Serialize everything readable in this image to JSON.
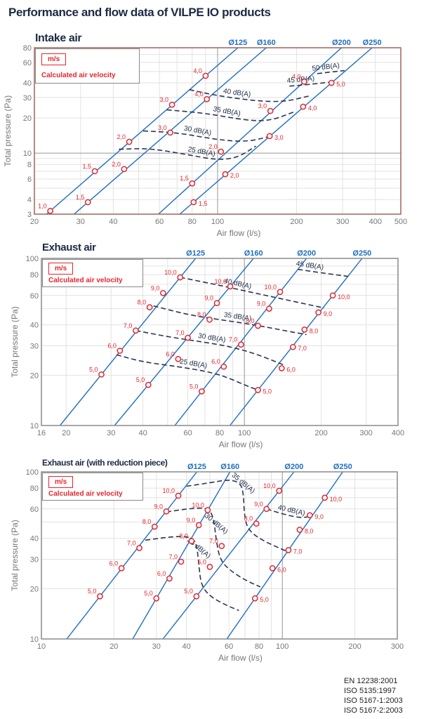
{
  "page_title": "Performance and flow data of  VILPE IO products",
  "standards": [
    "EN 12238:2001",
    "ISO 5135:1997",
    "ISO 5167-1:2003",
    "ISO 5167-2:2003"
  ],
  "legend": {
    "unit": "m/s",
    "description": "Calculated air velocity"
  },
  "colors": {
    "duct_line": "#1f6fc0",
    "marker": "#e3262e",
    "noise_curve": "#2b3550",
    "frame_intake": "#a0645a",
    "frame_exhaust": "#8a8a8a",
    "grid": "#dddddd"
  },
  "chart_data": [
    {
      "id": "intake",
      "type": "line",
      "title": "Intake air",
      "xlabel": "Air flow (l/s)",
      "ylabel": "Total pressure (Pa)",
      "xscale": "log",
      "yscale": "log",
      "xlim": [
        20,
        500
      ],
      "ylim": [
        3,
        80
      ],
      "xticks": [
        20,
        30,
        40,
        60,
        80,
        100,
        200,
        300,
        400,
        500
      ],
      "yticks": [
        3,
        4,
        6,
        8,
        10,
        20,
        30,
        40,
        60,
        80
      ],
      "grid": true,
      "series": [
        {
          "name": "Ø125",
          "points": [
            [
              23,
              3.2,
              "1,0"
            ],
            [
              34,
              7,
              "1,5"
            ],
            [
              46,
              12.5,
              "2,0"
            ],
            [
              67,
              26,
              "3,0"
            ],
            [
              90,
              46,
              "4,0"
            ]
          ]
        },
        {
          "name": "Ø160",
          "points": [
            [
              32,
              3.8,
              "1,5"
            ],
            [
              44,
              7.3,
              "2,0"
            ],
            [
              66,
              15,
              "3,0"
            ],
            [
              91,
              29,
              "4,0"
            ]
          ]
        },
        {
          "name": "Ø200",
          "points": [
            [
              80,
              5.5,
              "1,5"
            ],
            [
              103,
              10.3,
              "2,0"
            ],
            [
              159,
              23,
              "3,0"
            ],
            [
              214,
              41,
              "4,0"
            ]
          ]
        },
        {
          "name": "Ø250",
          "points": [
            [
              81,
              3.8,
              "1,5"
            ],
            [
              107,
              6.6,
              "2,0"
            ],
            [
              158,
              14,
              "3,0"
            ],
            [
              212,
              25,
              "4,0"
            ],
            [
              272,
              40,
              "5,0"
            ]
          ]
        }
      ],
      "noise_curves": [
        {
          "label": "25 dB(A)",
          "points": [
            [
              42,
              10.8
            ],
            [
              55,
              11
            ],
            [
              75,
              9.8
            ],
            [
              100,
              8.7
            ],
            [
              120,
              9.2
            ],
            [
              140,
              11.5
            ]
          ]
        },
        {
          "label": "30 dB(A)",
          "points": [
            [
              52,
              15.5
            ],
            [
              70,
              15
            ],
            [
              100,
              13
            ],
            [
              130,
              12.5
            ],
            [
              160,
              14
            ]
          ]
        },
        {
          "label": "35 dB(A)",
          "points": [
            [
              64,
              23.5
            ],
            [
              90,
              22
            ],
            [
              130,
              19
            ],
            [
              160,
              19
            ],
            [
              195,
              22.5
            ]
          ]
        },
        {
          "label": "40 dB(A)",
          "points": [
            [
              78,
              35
            ],
            [
              100,
              31
            ],
            [
              140,
              28
            ],
            [
              180,
              27.5
            ],
            [
              225,
              31
            ]
          ]
        },
        {
          "label": "45 dB(A)",
          "points": [
            [
              188,
              37.5
            ],
            [
              230,
              39
            ],
            [
              265,
              40.5
            ]
          ]
        },
        {
          "label": "50 dB(A)",
          "points": [
            [
              240,
              48
            ],
            [
              280,
              50
            ],
            [
              305,
              51
            ]
          ]
        }
      ]
    },
    {
      "id": "exhaust",
      "type": "line",
      "title": "Exhaust air",
      "xlabel": "Air flow (l/s)",
      "ylabel": "Total pressure (Pa)",
      "xscale": "log",
      "yscale": "log",
      "xlim": [
        16,
        400
      ],
      "ylim": [
        10,
        100
      ],
      "xticks": [
        16,
        20,
        30,
        40,
        60,
        80,
        100,
        200,
        300,
        400
      ],
      "yticks": [
        10,
        20,
        30,
        40,
        60,
        80,
        100
      ],
      "grid": true,
      "series": [
        {
          "name": "Ø125",
          "points": [
            [
              27.5,
              20.2,
              "5,0"
            ],
            [
              32.5,
              28,
              "6,0"
            ],
            [
              37.5,
              37,
              "7,0"
            ],
            [
              42.5,
              51,
              "8,0"
            ],
            [
              48,
              62,
              "9,0"
            ],
            [
              56,
              77,
              "10,0"
            ]
          ]
        },
        {
          "name": "Ø160",
          "points": [
            [
              42,
              17.5,
              "5,0"
            ],
            [
              55,
              25,
              "6,0"
            ],
            [
              60,
              33.5,
              "7,0"
            ],
            [
              73,
              43,
              "8,0"
            ],
            [
              78,
              54,
              "9,0"
            ],
            [
              88,
              68,
              "10,0"
            ]
          ]
        },
        {
          "name": "Ø200",
          "points": [
            [
              68,
              16,
              "5,0"
            ],
            [
              83,
              22.5,
              "6,0"
            ],
            [
              97,
              30.5,
              "7,0"
            ],
            [
              113,
              39.5,
              "8,0"
            ],
            [
              125,
              50,
              "9,0"
            ],
            [
              138,
              63,
              "10,0"
            ]
          ]
        },
        {
          "name": "Ø250",
          "points": [
            [
              113,
              16.3,
              "5,0"
            ],
            [
              140,
              22,
              "6,0"
            ],
            [
              155,
              29.5,
              "7,0"
            ],
            [
              172,
              37.5,
              "8,0"
            ],
            [
              195,
              47.5,
              "9,0"
            ],
            [
              222,
              60,
              "10,0"
            ]
          ]
        }
      ],
      "noise_curves": [
        {
          "label": "25 dB(A)",
          "points": [
            [
              31.5,
              26.5
            ],
            [
              40,
              24
            ],
            [
              55,
              22.5
            ],
            [
              72,
              21
            ],
            [
              85,
              19.5
            ],
            [
              100,
              17.5
            ],
            [
              113,
              16.3
            ]
          ]
        },
        {
          "label": "30 dB(A)",
          "points": [
            [
              37.5,
              37
            ],
            [
              50,
              34
            ],
            [
              65,
              32
            ],
            [
              85,
              30
            ],
            [
              110,
              27
            ],
            [
              143,
              23
            ]
          ]
        },
        {
          "label": "35 dB(A)",
          "points": [
            [
              44,
              52
            ],
            [
              60,
              46
            ],
            [
              80,
              43
            ],
            [
              110,
              40
            ],
            [
              150,
              36.5
            ],
            [
              175,
              35
            ]
          ]
        },
        {
          "label": "40 dB(A)",
          "points": [
            [
              56,
              77
            ],
            [
              80,
              69
            ],
            [
              110,
              62
            ],
            [
              150,
              56
            ],
            [
              205,
              50.5
            ]
          ]
        },
        {
          "label": "45 dB(A)",
          "points": [
            [
              162,
              86
            ],
            [
              200,
              82
            ],
            [
              255,
              78
            ]
          ]
        }
      ]
    },
    {
      "id": "exhaust_reduction",
      "type": "line",
      "title": "Exhaust air (with reduction piece)",
      "xlabel": "Air flow (l/s)",
      "ylabel": "Total pressure (Pa)",
      "xscale": "log",
      "yscale": "log",
      "xlim": [
        10,
        300
      ],
      "ylim": [
        10,
        100
      ],
      "xticks": [
        10,
        20,
        30,
        40,
        60,
        80,
        100,
        200,
        300
      ],
      "yticks": [
        10,
        20,
        30,
        40,
        60,
        80,
        100
      ],
      "grid": true,
      "series": [
        {
          "name": "Ø125",
          "points": [
            [
              17.5,
              18,
              "5,0"
            ],
            [
              21.5,
              26.5,
              "6,0"
            ],
            [
              25.5,
              35,
              "7,0"
            ],
            [
              29.5,
              47,
              "8,0"
            ],
            [
              33,
              58,
              "9,0"
            ],
            [
              37,
              72,
              "10,0"
            ]
          ]
        },
        {
          "name": "Ø160",
          "points": [
            [
              30,
              17.5,
              "5,0"
            ],
            [
              34,
              23,
              "6,0"
            ],
            [
              38,
              29,
              "7,0"
            ],
            [
              42,
              38.5,
              "8,0"
            ],
            [
              45,
              48,
              "9,0"
            ],
            [
              49,
              59,
              "10,0"
            ]
          ]
        },
        {
          "name": "Ø200",
          "points": [
            [
              44,
              18,
              "5,0"
            ],
            [
              50,
              27,
              "6,0"
            ],
            [
              56,
              36,
              "7,0"
            ],
            [
              78,
              49,
              "8,0"
            ],
            [
              86,
              60,
              "9,0"
            ],
            [
              97,
              77,
              "10,0"
            ]
          ]
        },
        {
          "name": "Ø250",
          "points": [
            [
              77,
              17.5,
              "5,0"
            ],
            [
              91,
              26.5,
              "6,0"
            ],
            [
              106,
              34,
              "7,0"
            ],
            [
              118,
              45,
              "8,0"
            ],
            [
              130,
              55,
              "9,0"
            ],
            [
              150,
              70,
              "10,0"
            ]
          ]
        }
      ],
      "noise_curves": [
        {
          "label": "25 dB(A)",
          "points": [
            [
              27,
              39
            ],
            [
              35,
              41
            ],
            [
              41,
              41
            ],
            [
              44,
              38
            ],
            [
              45,
              28
            ],
            [
              46,
              21
            ],
            [
              50,
              18
            ],
            [
              58,
              16
            ],
            [
              66,
              14.8
            ]
          ]
        },
        {
          "label": "30 dB(A)",
          "points": [
            [
              33,
              57.5
            ],
            [
              40,
              60
            ],
            [
              47,
              61
            ],
            [
              50,
              59
            ],
            [
              52,
              52
            ],
            [
              53,
              40
            ],
            [
              55,
              30
            ],
            [
              60,
              26
            ],
            [
              70,
              22.5
            ],
            [
              81,
              20.5
            ]
          ]
        },
        {
          "label": "35 dB(A)",
          "points": [
            [
              40,
              82
            ],
            [
              50,
              86
            ],
            [
              60,
              90
            ],
            [
              67,
              86
            ],
            [
              69,
              74
            ],
            [
              69.5,
              55
            ],
            [
              72,
              45
            ],
            [
              82,
              39
            ],
            [
              104,
              33.5
            ]
          ]
        },
        {
          "label": "40 dB(A)",
          "points": [
            [
              86,
              60
            ],
            [
              100,
              56
            ],
            [
              118,
              53
            ],
            [
              130,
              54
            ]
          ]
        }
      ]
    }
  ]
}
